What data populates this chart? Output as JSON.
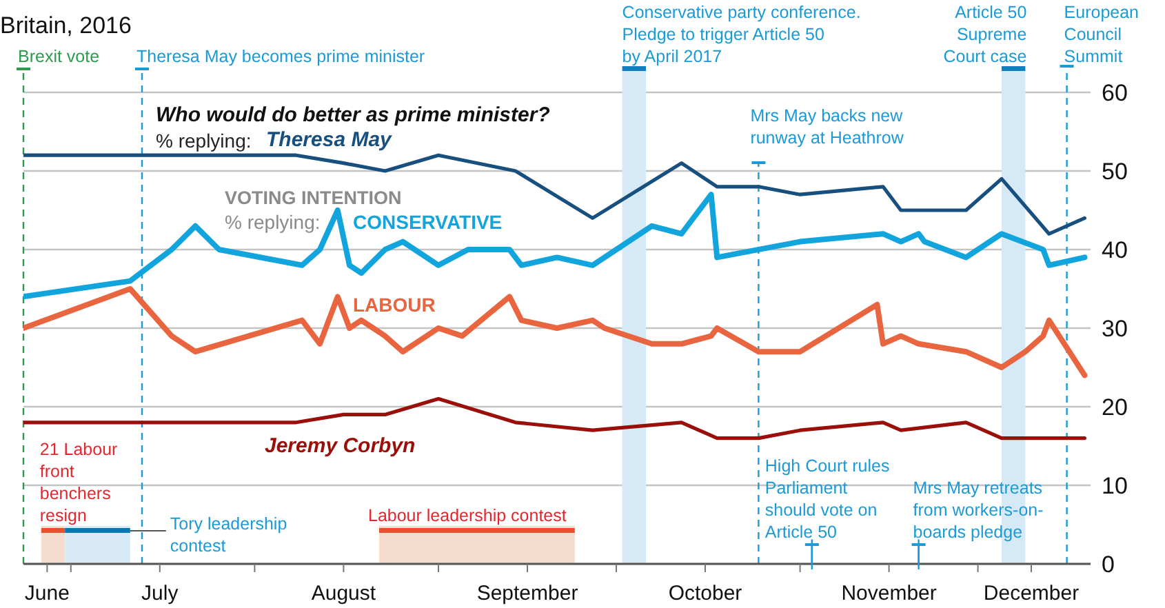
{
  "chart_data": {
    "type": "line",
    "subtitle": "Britain, 2016",
    "annotations": [
      "Who would do better as prime minister?",
      "% replying:",
      "VOTING INTENTION",
      "% replying:"
    ],
    "xlim": [
      "2016-06-23",
      "2016-12-20"
    ],
    "xticks": [
      {
        "value": "2016-06-27",
        "label": "June"
      },
      {
        "value": "2016-07-01",
        "label": null
      },
      {
        "value": "2016-07-16",
        "label": "July"
      },
      {
        "value": "2016-08-01",
        "label": null
      },
      {
        "value": "2016-08-16",
        "label": "August"
      },
      {
        "value": "2016-09-01",
        "label": null
      },
      {
        "value": "2016-09-16",
        "label": "September"
      },
      {
        "value": "2016-10-01",
        "label": null
      },
      {
        "value": "2016-10-16",
        "label": "October"
      },
      {
        "value": "2016-11-01",
        "label": null
      },
      {
        "value": "2016-11-16",
        "label": "November"
      },
      {
        "value": "2016-12-01",
        "label": null
      },
      {
        "value": "2016-12-10",
        "label": "December"
      }
    ],
    "ylim": [
      0,
      60
    ],
    "yticks": [
      0,
      10,
      20,
      30,
      40,
      50,
      60
    ],
    "grid": "y",
    "marker": "none",
    "line_style": "solid",
    "series": [
      {
        "name": "Theresa May",
        "color": "#17507e",
        "x": [
          "2016-06-23",
          "2016-08-08",
          "2016-08-16",
          "2016-08-23",
          "2016-09-01",
          "2016-09-14",
          "2016-09-27",
          "2016-10-12",
          "2016-10-18",
          "2016-10-25",
          "2016-11-01",
          "2016-11-15",
          "2016-11-18",
          "2016-11-29",
          "2016-12-05",
          "2016-12-13",
          "2016-12-19"
        ],
        "values": [
          52,
          52,
          51,
          50,
          52,
          50,
          44,
          51,
          48,
          48,
          47,
          48,
          45,
          45,
          49,
          42,
          44
        ]
      },
      {
        "name": "CONSERVATIVE",
        "color": "#12a4dd",
        "x": [
          "2016-06-23",
          "2016-07-11",
          "2016-07-18",
          "2016-07-22",
          "2016-07-26",
          "2016-08-09",
          "2016-08-12",
          "2016-08-15",
          "2016-08-17",
          "2016-08-19",
          "2016-08-23",
          "2016-08-26",
          "2016-09-01",
          "2016-09-06",
          "2016-09-13",
          "2016-09-15",
          "2016-09-21",
          "2016-09-27",
          "2016-10-07",
          "2016-10-12",
          "2016-10-17",
          "2016-10-18",
          "2016-11-01",
          "2016-11-15",
          "2016-11-18",
          "2016-11-21",
          "2016-11-22",
          "2016-11-29",
          "2016-12-05",
          "2016-12-12",
          "2016-12-13",
          "2016-12-19"
        ],
        "values": [
          34,
          36,
          40,
          43,
          40,
          38,
          40,
          45,
          38,
          37,
          40,
          41,
          38,
          40,
          40,
          38,
          39,
          38,
          43,
          42,
          47,
          39,
          41,
          42,
          41,
          42,
          41,
          39,
          42,
          40,
          38,
          39
        ]
      },
      {
        "name": "LABOUR",
        "color": "#e8653f",
        "x": [
          "2016-06-23",
          "2016-07-11",
          "2016-07-18",
          "2016-07-22",
          "2016-08-09",
          "2016-08-12",
          "2016-08-15",
          "2016-08-17",
          "2016-08-19",
          "2016-08-23",
          "2016-08-26",
          "2016-09-01",
          "2016-09-05",
          "2016-09-13",
          "2016-09-15",
          "2016-09-21",
          "2016-09-27",
          "2016-09-29",
          "2016-10-07",
          "2016-10-12",
          "2016-10-17",
          "2016-10-18",
          "2016-10-25",
          "2016-11-01",
          "2016-11-14",
          "2016-11-15",
          "2016-11-18",
          "2016-11-21",
          "2016-11-29",
          "2016-12-05",
          "2016-12-09",
          "2016-12-12",
          "2016-12-13",
          "2016-12-19"
        ],
        "values": [
          30,
          35,
          29,
          27,
          31,
          28,
          34,
          30,
          31,
          29,
          27,
          30,
          29,
          34,
          31,
          30,
          31,
          30,
          28,
          28,
          29,
          30,
          27,
          27,
          33,
          28,
          29,
          28,
          27,
          25,
          27,
          29,
          31,
          24
        ]
      },
      {
        "name": "Jeremy Corbyn",
        "color": "#9b0f0a",
        "x": [
          "2016-06-23",
          "2016-08-08",
          "2016-08-16",
          "2016-08-23",
          "2016-09-01",
          "2016-09-14",
          "2016-09-27",
          "2016-10-12",
          "2016-10-18",
          "2016-10-25",
          "2016-11-01",
          "2016-11-15",
          "2016-11-18",
          "2016-11-29",
          "2016-12-05",
          "2016-12-19"
        ],
        "values": [
          18,
          18,
          19,
          19,
          21,
          18,
          17,
          18,
          16,
          16,
          17,
          18,
          17,
          18,
          16,
          16
        ]
      }
    ],
    "ref_lines": [
      {
        "axis": "x",
        "value": "2016-06-23",
        "label": "Brexit vote",
        "color": "#2e9a4e",
        "line_style": "dashed"
      },
      {
        "axis": "x",
        "value": "2016-07-13",
        "label": "Theresa May becomes prime minister",
        "color": "#1b9ad6",
        "line_style": "dashed"
      },
      {
        "axis": "x",
        "value": "2016-10-25",
        "label": "Mrs May backs new runway at Heathrow",
        "color": "#1b9ad6",
        "line_style": "dashed"
      },
      {
        "axis": "x",
        "value": "2016-11-03",
        "label": "High Court rules Parliament should vote on Article 50",
        "color": "#1b9ad6"
      },
      {
        "axis": "x",
        "value": "2016-11-21",
        "label": "Mrs May retreats from workers-on-boards pledge",
        "color": "#1b9ad6"
      },
      {
        "axis": "x",
        "value": "2016-12-16",
        "label": "European Council Summit",
        "color": "#1b9ad6",
        "line_style": "dashed"
      }
    ],
    "bands": [
      {
        "axis": "x",
        "from": "2016-10-02",
        "to": "2016-10-06",
        "label": "Conservative party conference. Pledge to trigger Article 50 by April 2017",
        "color": "#d6e9f6"
      },
      {
        "axis": "x",
        "from": "2016-12-05",
        "to": "2016-12-09",
        "label": "Article 50 Supreme Court case",
        "color": "#d6e9f6"
      },
      {
        "axis": "x",
        "from": "2016-06-26",
        "to": "2016-06-30",
        "label": "21 Labour front benchers resign",
        "color": "#f6dccf"
      },
      {
        "axis": "x",
        "from": "2016-06-30",
        "to": "2016-07-11",
        "label": "Tory leadership contest",
        "color": "#d8eaf6"
      },
      {
        "axis": "x",
        "from": "2016-08-22",
        "to": "2016-09-24",
        "label": "Labour leadership contest",
        "color": "#f6dccf"
      }
    ]
  }
}
